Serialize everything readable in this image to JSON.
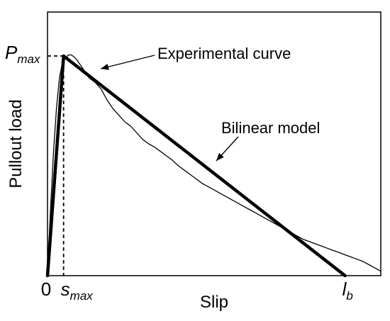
{
  "chart_data": {
    "type": "line",
    "xlabel": "Slip",
    "ylabel": "Pullout load",
    "xlim": [
      0,
      1.12
    ],
    "ylim": [
      0,
      1.2
    ],
    "grid": false,
    "x_ticks": [
      {
        "value": 0,
        "text": "0",
        "sub": ""
      },
      {
        "value": 0.054,
        "text": "s",
        "sub": "max"
      },
      {
        "value": 1.0,
        "text": "l",
        "sub": "b"
      }
    ],
    "y_ticks": [
      {
        "value": 1.0,
        "text": "P",
        "sub": "max"
      }
    ],
    "series": [
      {
        "name": "Experimental curve",
        "x": [
          0,
          0.01,
          0.02,
          0.03,
          0.04,
          0.05,
          0.06,
          0.07,
          0.08,
          0.09,
          0.1,
          0.12,
          0.14,
          0.16,
          0.18,
          0.2,
          0.22,
          0.24,
          0.26,
          0.28,
          0.3,
          0.32,
          0.34,
          0.36,
          0.38,
          0.4,
          0.42,
          0.44,
          0.46,
          0.48,
          0.5,
          0.52,
          0.54,
          0.56,
          0.58,
          0.6,
          0.62,
          0.64,
          0.66,
          0.68,
          0.7,
          0.72,
          0.74,
          0.76,
          0.78,
          0.8,
          0.82,
          0.84,
          0.86,
          0.88,
          0.9,
          0.92,
          0.94,
          0.96,
          0.98,
          1.0,
          1.02,
          1.04,
          1.06,
          1.08,
          1.1,
          1.12
        ],
        "y": [
          0,
          0.3,
          0.56,
          0.76,
          0.9,
          0.97,
          0.99,
          1.005,
          1.005,
          0.995,
          0.98,
          0.94,
          0.9,
          0.88,
          0.85,
          0.8,
          0.76,
          0.73,
          0.7,
          0.68,
          0.65,
          0.62,
          0.6,
          0.585,
          0.565,
          0.545,
          0.525,
          0.5,
          0.48,
          0.46,
          0.44,
          0.42,
          0.405,
          0.39,
          0.375,
          0.36,
          0.345,
          0.33,
          0.315,
          0.3,
          0.285,
          0.27,
          0.255,
          0.24,
          0.225,
          0.21,
          0.195,
          0.18,
          0.165,
          0.155,
          0.145,
          0.135,
          0.125,
          0.115,
          0.105,
          0.095,
          0.085,
          0.075,
          0.065,
          0.05,
          0.035,
          0.02
        ]
      },
      {
        "name": "Bilinear model",
        "x": [
          0,
          0.054,
          1.0
        ],
        "y": [
          0,
          1.0,
          0
        ]
      }
    ],
    "annotations": [
      {
        "text": "Experimental curve",
        "series": 0
      },
      {
        "text": "Bilinear model",
        "series": 1
      }
    ]
  }
}
